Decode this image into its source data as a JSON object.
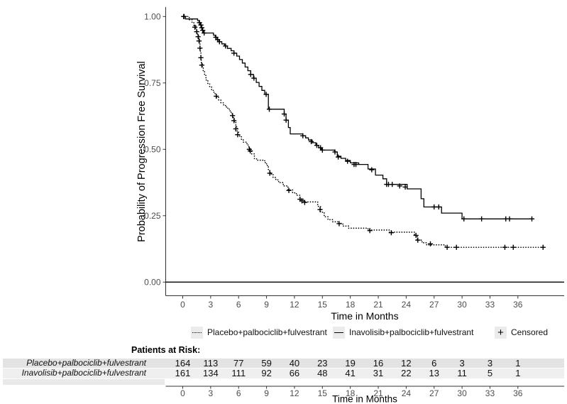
{
  "chart_data": {
    "type": "line",
    "subtype": "kaplan-meier-step",
    "title": "",
    "xlabel": "Time in Months",
    "ylabel": "Probability of Progression Free Survival",
    "x_ticks": [
      0,
      3,
      6,
      9,
      12,
      15,
      18,
      21,
      24,
      27,
      30,
      33,
      36
    ],
    "y_ticks": [
      {
        "value": 1.0,
        "label": "1.00"
      },
      {
        "value": 0.75,
        "label": "0.75"
      },
      {
        "value": 0.5,
        "label": "0.50"
      },
      {
        "value": 0.25,
        "label": "0.25"
      },
      {
        "value": 0.0,
        "label": "0.00"
      }
    ],
    "xlim": [
      0,
      41
    ],
    "ylim": [
      0,
      1
    ],
    "grid": false,
    "reference_line_y": 0,
    "legend_position": "bottom",
    "series": [
      {
        "name": "Placebo+palbociclib+fulvestrant",
        "style": "dotted",
        "color": "#000000",
        "end_t": 38.8,
        "steps": [
          [
            0,
            1.0
          ],
          [
            0.7,
            0.988
          ],
          [
            1.0,
            0.977
          ],
          [
            1.2,
            0.966
          ],
          [
            1.4,
            0.955
          ],
          [
            1.5,
            0.943
          ],
          [
            1.6,
            0.93
          ],
          [
            1.7,
            0.917
          ],
          [
            1.8,
            0.899
          ],
          [
            1.85,
            0.881
          ],
          [
            1.9,
            0.863
          ],
          [
            1.95,
            0.845
          ],
          [
            2.0,
            0.826
          ],
          [
            2.1,
            0.808
          ],
          [
            2.2,
            0.792
          ],
          [
            2.35,
            0.778
          ],
          [
            2.5,
            0.761
          ],
          [
            2.7,
            0.748
          ],
          [
            2.9,
            0.735
          ],
          [
            3.1,
            0.722
          ],
          [
            3.35,
            0.71
          ],
          [
            3.6,
            0.697
          ],
          [
            3.85,
            0.686
          ],
          [
            4.1,
            0.675
          ],
          [
            4.4,
            0.665
          ],
          [
            4.7,
            0.655
          ],
          [
            5.0,
            0.645
          ],
          [
            5.2,
            0.634
          ],
          [
            5.4,
            0.62
          ],
          [
            5.55,
            0.605
          ],
          [
            5.7,
            0.585
          ],
          [
            5.85,
            0.565
          ],
          [
            6.0,
            0.55
          ],
          [
            6.3,
            0.538
          ],
          [
            6.5,
            0.527
          ],
          [
            6.9,
            0.516
          ],
          [
            7.1,
            0.505
          ],
          [
            7.2,
            0.494
          ],
          [
            7.4,
            0.483
          ],
          [
            7.7,
            0.464
          ],
          [
            8.0,
            0.459
          ],
          [
            8.8,
            0.45
          ],
          [
            9.0,
            0.439
          ],
          [
            9.2,
            0.42
          ],
          [
            9.4,
            0.407
          ],
          [
            9.7,
            0.394
          ],
          [
            10.0,
            0.385
          ],
          [
            10.3,
            0.375
          ],
          [
            10.8,
            0.362
          ],
          [
            11.3,
            0.347
          ],
          [
            11.8,
            0.336
          ],
          [
            12.2,
            0.327
          ],
          [
            12.6,
            0.312
          ],
          [
            13.0,
            0.302
          ],
          [
            14.5,
            0.285
          ],
          [
            14.8,
            0.263
          ],
          [
            15.2,
            0.246
          ],
          [
            15.6,
            0.235
          ],
          [
            16.1,
            0.227
          ],
          [
            16.7,
            0.221
          ],
          [
            17.2,
            0.211
          ],
          [
            17.8,
            0.203
          ],
          [
            19.9,
            0.196
          ],
          [
            22.2,
            0.188
          ],
          [
            24.9,
            0.176
          ],
          [
            25.2,
            0.158
          ],
          [
            25.7,
            0.148
          ],
          [
            26.2,
            0.14
          ],
          [
            28.2,
            0.131
          ]
        ],
        "censors": [
          [
            0.15,
            1.0
          ],
          [
            1.3,
            0.96
          ],
          [
            1.5,
            0.943
          ],
          [
            1.65,
            0.924
          ],
          [
            1.75,
            0.908
          ],
          [
            1.85,
            0.881
          ],
          [
            1.95,
            0.845
          ],
          [
            2.05,
            0.817
          ],
          [
            3.6,
            0.7
          ],
          [
            5.35,
            0.627
          ],
          [
            5.5,
            0.608
          ],
          [
            5.7,
            0.577
          ],
          [
            5.9,
            0.555
          ],
          [
            7.15,
            0.5
          ],
          [
            7.25,
            0.494
          ],
          [
            9.35,
            0.41
          ],
          [
            11.4,
            0.345
          ],
          [
            12.6,
            0.312
          ],
          [
            12.8,
            0.306
          ],
          [
            13.1,
            0.3
          ],
          [
            14.75,
            0.273
          ],
          [
            16.8,
            0.22
          ],
          [
            20.1,
            0.194
          ],
          [
            22.4,
            0.186
          ],
          [
            25.05,
            0.176
          ],
          [
            25.25,
            0.158
          ],
          [
            26.6,
            0.144
          ],
          [
            28.4,
            0.131
          ],
          [
            29.4,
            0.131
          ],
          [
            34.6,
            0.131
          ],
          [
            35.5,
            0.131
          ],
          [
            38.7,
            0.131
          ]
        ]
      },
      {
        "name": "Inavolisib+palbociclib+fulvestrant",
        "style": "solid",
        "color": "#000000",
        "end_t": 37.7,
        "steps": [
          [
            0,
            1.0
          ],
          [
            0.3,
            0.991
          ],
          [
            1.6,
            0.985
          ],
          [
            1.75,
            0.977
          ],
          [
            1.9,
            0.968
          ],
          [
            2.0,
            0.958
          ],
          [
            2.1,
            0.948
          ],
          [
            2.25,
            0.938
          ],
          [
            3.3,
            0.93
          ],
          [
            3.5,
            0.922
          ],
          [
            3.7,
            0.913
          ],
          [
            3.9,
            0.905
          ],
          [
            4.2,
            0.897
          ],
          [
            4.5,
            0.889
          ],
          [
            4.8,
            0.88
          ],
          [
            5.2,
            0.871
          ],
          [
            5.5,
            0.862
          ],
          [
            5.8,
            0.851
          ],
          [
            6.1,
            0.838
          ],
          [
            6.4,
            0.825
          ],
          [
            6.7,
            0.81
          ],
          [
            7.0,
            0.796
          ],
          [
            7.3,
            0.782
          ],
          [
            7.6,
            0.768
          ],
          [
            7.9,
            0.752
          ],
          [
            8.2,
            0.737
          ],
          [
            8.5,
            0.722
          ],
          [
            8.8,
            0.707
          ],
          [
            9.2,
            0.651
          ],
          [
            10.9,
            0.633
          ],
          [
            11.1,
            0.61
          ],
          [
            11.35,
            0.582
          ],
          [
            11.55,
            0.558
          ],
          [
            12.9,
            0.551
          ],
          [
            13.2,
            0.543
          ],
          [
            13.5,
            0.535
          ],
          [
            13.9,
            0.525
          ],
          [
            14.3,
            0.515
          ],
          [
            14.6,
            0.506
          ],
          [
            14.9,
            0.497
          ],
          [
            16.3,
            0.49
          ],
          [
            16.6,
            0.474
          ],
          [
            17.0,
            0.466
          ],
          [
            17.5,
            0.458
          ],
          [
            18.0,
            0.449
          ],
          [
            18.9,
            0.443
          ],
          [
            19.9,
            0.426
          ],
          [
            20.7,
            0.403
          ],
          [
            21.5,
            0.389
          ],
          [
            21.9,
            0.368
          ],
          [
            24.1,
            0.351
          ],
          [
            25.6,
            0.314
          ],
          [
            25.9,
            0.283
          ],
          [
            27.8,
            0.26
          ],
          [
            30.0,
            0.238
          ]
        ],
        "censors": [
          [
            0.1,
            1.0
          ],
          [
            1.8,
            0.977
          ],
          [
            1.95,
            0.968
          ],
          [
            2.05,
            0.958
          ],
          [
            2.15,
            0.948
          ],
          [
            2.3,
            0.938
          ],
          [
            3.55,
            0.922
          ],
          [
            3.75,
            0.913
          ],
          [
            3.95,
            0.905
          ],
          [
            4.6,
            0.889
          ],
          [
            5.5,
            0.862
          ],
          [
            7.3,
            0.782
          ],
          [
            7.65,
            0.768
          ],
          [
            8.96,
            0.707
          ],
          [
            9.3,
            0.651
          ],
          [
            10.9,
            0.633
          ],
          [
            11.1,
            0.61
          ],
          [
            12.9,
            0.551
          ],
          [
            13.8,
            0.529
          ],
          [
            14.4,
            0.515
          ],
          [
            14.8,
            0.506
          ],
          [
            15.0,
            0.497
          ],
          [
            16.35,
            0.49
          ],
          [
            16.7,
            0.471
          ],
          [
            17.7,
            0.455
          ],
          [
            18.4,
            0.443
          ],
          [
            18.6,
            0.443
          ],
          [
            20.3,
            0.423
          ],
          [
            21.9,
            0.368
          ],
          [
            22.1,
            0.368
          ],
          [
            22.5,
            0.368
          ],
          [
            23.3,
            0.362
          ],
          [
            23.9,
            0.358
          ],
          [
            27.0,
            0.283
          ],
          [
            27.5,
            0.283
          ],
          [
            30.2,
            0.238
          ],
          [
            32.1,
            0.238
          ],
          [
            34.7,
            0.238
          ],
          [
            35.1,
            0.238
          ],
          [
            37.5,
            0.238
          ]
        ]
      }
    ],
    "legend": {
      "items": [
        {
          "label": "Placebo+palbociclib+fulvestrant",
          "key": "dotted"
        },
        {
          "label": "Inavolisib+palbociclib+fulvestrant",
          "key": "solid"
        },
        {
          "label": "Censored",
          "key": "plus"
        }
      ]
    }
  },
  "risk_table": {
    "title": "Patients at Risk:",
    "months": [
      0,
      3,
      6,
      9,
      12,
      15,
      18,
      21,
      24,
      27,
      30,
      33,
      36
    ],
    "xlabel": "Time in Months",
    "rows": [
      {
        "label": "Placebo+palbociclib+fulvestrant",
        "values": [
          164,
          113,
          77,
          59,
          40,
          23,
          19,
          16,
          12,
          6,
          3,
          3,
          1
        ]
      },
      {
        "label": "Inavolisib+palbociclib+fulvestrant",
        "values": [
          161,
          134,
          111,
          92,
          66,
          48,
          41,
          31,
          22,
          13,
          11,
          5,
          1
        ]
      }
    ]
  },
  "colors": {
    "axis": "#333333",
    "tick_text": "#4d4d4d",
    "curve": "#000000",
    "row_stripe_1": "#e3e3e3",
    "row_stripe_2": "#efefef",
    "legend_key_bg": "#ebebeb"
  }
}
